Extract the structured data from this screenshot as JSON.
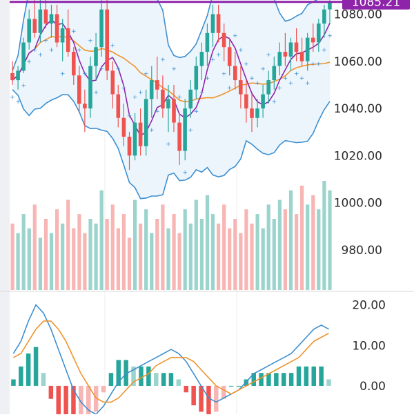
{
  "current_price": "1085.21",
  "colors": {
    "up": "#26a69a",
    "up_light": "#9bd4cc",
    "down": "#ef5350",
    "down_light": "#f7b5b3",
    "boll": "#3d8fd0",
    "boll_fill": "#eaf4fc",
    "ma_orange": "#f0932b",
    "ma_purple": "#8e24aa",
    "sar": "#3d8fd0",
    "price_line": "#8e24aa",
    "grid": "#ececec",
    "axis_text": "#2b2b2b"
  },
  "chart_data": [
    {
      "type": "candlestick",
      "title": "",
      "price_axis": {
        "ticks": [
          "1080.00",
          "1060.00",
          "1040.00",
          "1020.00",
          "1000.00",
          "980.00"
        ],
        "tick_values": [
          1080,
          1060,
          1040,
          1020,
          1000,
          980
        ],
        "range": [
          963,
          1086
        ]
      },
      "current_price_line": 1085.21,
      "candles_ohlc": [
        [
          1055,
          1060,
          1050,
          1052
        ],
        [
          1052,
          1058,
          1048,
          1056
        ],
        [
          1056,
          1070,
          1055,
          1068
        ],
        [
          1068,
          1082,
          1065,
          1078
        ],
        [
          1078,
          1088,
          1070,
          1072
        ],
        [
          1072,
          1086,
          1068,
          1082
        ],
        [
          1082,
          1086,
          1074,
          1076
        ],
        [
          1076,
          1084,
          1070,
          1080
        ],
        [
          1080,
          1084,
          1066,
          1068
        ],
        [
          1068,
          1078,
          1060,
          1074
        ],
        [
          1074,
          1082,
          1062,
          1064
        ],
        [
          1064,
          1066,
          1050,
          1054
        ],
        [
          1054,
          1058,
          1038,
          1042
        ],
        [
          1042,
          1048,
          1030,
          1040
        ],
        [
          1040,
          1062,
          1036,
          1058
        ],
        [
          1058,
          1072,
          1052,
          1066
        ],
        [
          1066,
          1086,
          1062,
          1082
        ],
        [
          1082,
          1086,
          1052,
          1056
        ],
        [
          1056,
          1060,
          1040,
          1046
        ],
        [
          1046,
          1050,
          1032,
          1036
        ],
        [
          1036,
          1042,
          1024,
          1028
        ],
        [
          1028,
          1030,
          1014,
          1020
        ],
        [
          1020,
          1038,
          1018,
          1034
        ],
        [
          1034,
          1040,
          1020,
          1024
        ],
        [
          1024,
          1048,
          1020,
          1044
        ],
        [
          1044,
          1058,
          1036,
          1052
        ],
        [
          1052,
          1062,
          1044,
          1048
        ],
        [
          1048,
          1054,
          1036,
          1040
        ],
        [
          1040,
          1050,
          1030,
          1044
        ],
        [
          1044,
          1050,
          1030,
          1034
        ],
        [
          1034,
          1038,
          1016,
          1022
        ],
        [
          1022,
          1044,
          1018,
          1040
        ],
        [
          1040,
          1052,
          1036,
          1048
        ],
        [
          1048,
          1062,
          1044,
          1058
        ],
        [
          1058,
          1068,
          1052,
          1064
        ],
        [
          1064,
          1076,
          1058,
          1072
        ],
        [
          1072,
          1084,
          1066,
          1080
        ],
        [
          1080,
          1084,
          1068,
          1072
        ],
        [
          1072,
          1076,
          1060,
          1066
        ],
        [
          1066,
          1070,
          1054,
          1058
        ],
        [
          1058,
          1064,
          1048,
          1052
        ],
        [
          1052,
          1058,
          1040,
          1046
        ],
        [
          1046,
          1052,
          1034,
          1040
        ],
        [
          1040,
          1046,
          1030,
          1036
        ],
        [
          1036,
          1044,
          1032,
          1040
        ],
        [
          1040,
          1050,
          1036,
          1046
        ],
        [
          1046,
          1056,
          1042,
          1052
        ],
        [
          1052,
          1062,
          1048,
          1058
        ],
        [
          1058,
          1068,
          1054,
          1064
        ],
        [
          1064,
          1072,
          1058,
          1062
        ],
        [
          1062,
          1070,
          1056,
          1068
        ],
        [
          1068,
          1074,
          1060,
          1064
        ],
        [
          1064,
          1070,
          1058,
          1060
        ],
        [
          1060,
          1072,
          1056,
          1070
        ],
        [
          1070,
          1076,
          1064,
          1068
        ],
        [
          1068,
          1078,
          1064,
          1076
        ],
        [
          1076,
          1084,
          1070,
          1082
        ],
        [
          1082,
          1088,
          1076,
          1085
        ]
      ],
      "volume": {
        "values": [
          14,
          12,
          16,
          13,
          18,
          11,
          15,
          12,
          17,
          14,
          19,
          13,
          16,
          12,
          15,
          14,
          21,
          15,
          18,
          13,
          16,
          11,
          19,
          14,
          17,
          12,
          15,
          18,
          13,
          16,
          12,
          17,
          14,
          19,
          15,
          20,
          16,
          14,
          18,
          13,
          15,
          12,
          17,
          14,
          16,
          13,
          18,
          15,
          19,
          17,
          21,
          16,
          22,
          18,
          20,
          17,
          23,
          21
        ]
      },
      "indicators": [
        "Bollinger Bands",
        "Moving Average",
        "Moving Average",
        "Parabolic SAR"
      ]
    },
    {
      "type": "macd",
      "axis": {
        "ticks": [
          "20.00",
          "10.00",
          "0.00"
        ],
        "tick_values": [
          20,
          10,
          0
        ],
        "range": [
          -7,
          23
        ]
      },
      "series": [
        {
          "values": [
            8,
            11,
            16,
            20,
            18,
            14,
            9,
            4,
            -1,
            -4,
            -6,
            -7,
            -5,
            -2,
            1,
            3,
            4,
            5,
            6,
            7,
            8,
            9,
            8,
            6,
            3,
            0,
            -3,
            -4,
            -3,
            -2,
            -1,
            1,
            3,
            4,
            5,
            6,
            7,
            8,
            10,
            12,
            14,
            15,
            14
          ]
        },
        {
          "values": [
            7,
            8,
            11,
            14,
            16,
            16,
            14,
            11,
            7,
            3,
            0,
            -3,
            -4,
            -4,
            -3,
            -1,
            1,
            2,
            3,
            5,
            6,
            7,
            7,
            7,
            6,
            4,
            2,
            0,
            -1,
            -2,
            -1,
            0,
            1,
            2,
            3,
            4,
            5,
            6,
            7,
            9,
            11,
            12,
            13
          ]
        }
      ]
    }
  ]
}
